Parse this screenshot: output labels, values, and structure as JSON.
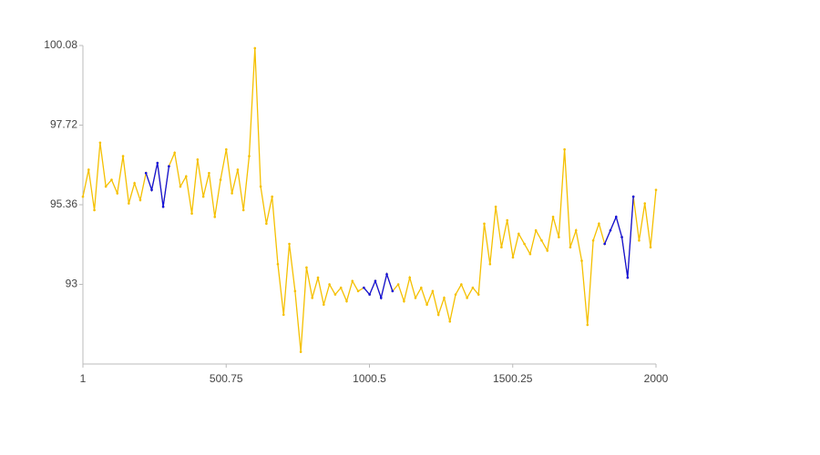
{
  "chart_data": {
    "type": "line",
    "x": [
      1,
      21,
      41,
      61,
      81,
      101,
      121,
      141,
      161,
      181,
      201,
      221,
      241,
      261,
      281,
      301,
      321,
      341,
      361,
      381,
      401,
      421,
      441,
      461,
      481,
      501,
      521,
      541,
      561,
      581,
      601,
      621,
      641,
      661,
      681,
      701,
      721,
      741,
      761,
      781,
      801,
      821,
      841,
      861,
      881,
      901,
      921,
      941,
      961,
      981,
      1001,
      1021,
      1041,
      1061,
      1081,
      1101,
      1121,
      1141,
      1161,
      1181,
      1201,
      1221,
      1241,
      1261,
      1281,
      1301,
      1321,
      1341,
      1361,
      1381,
      1401,
      1421,
      1441,
      1461,
      1481,
      1501,
      1521,
      1541,
      1561,
      1581,
      1601,
      1621,
      1641,
      1661,
      1681,
      1701,
      1721,
      1741,
      1761,
      1781,
      1801,
      1821,
      1841,
      1861,
      1881,
      1901,
      1921,
      1941,
      1961,
      1981,
      2000
    ],
    "series": [
      {
        "color": "#f5c000",
        "values": [
          95.6,
          96.4,
          95.2,
          97.2,
          95.9,
          96.1,
          95.7,
          96.8,
          95.4,
          96.0,
          95.5,
          96.3,
          95.8,
          96.6,
          95.3,
          96.5,
          96.9,
          95.9,
          96.2,
          95.1,
          96.7,
          95.6,
          96.3,
          95.0,
          96.1,
          97.0,
          95.7,
          96.4,
          95.2,
          96.8,
          100.0,
          95.9,
          94.8,
          95.6,
          93.6,
          92.1,
          94.2,
          92.8,
          91.0,
          93.5,
          92.6,
          93.2,
          92.4,
          93.0,
          92.7,
          92.9,
          92.5,
          93.1,
          92.8,
          92.9,
          92.7,
          93.1,
          92.6,
          93.3,
          92.8,
          93.0,
          92.5,
          93.2,
          92.6,
          92.9,
          92.4,
          92.8,
          92.1,
          92.6,
          91.9,
          92.7,
          93.0,
          92.6,
          92.9,
          92.7,
          94.8,
          93.6,
          95.3,
          94.1,
          94.9,
          93.8,
          94.5,
          94.2,
          93.9,
          94.6,
          94.3,
          94.0,
          95.0,
          94.4,
          97.0,
          94.1,
          94.6,
          93.7,
          91.8,
          94.3,
          94.8,
          94.2,
          94.6,
          95.0,
          94.4,
          93.2,
          95.6,
          94.3,
          95.4,
          94.1,
          95.8
        ]
      },
      {
        "color": "#1010e0",
        "values": [
          null,
          null,
          null,
          null,
          null,
          null,
          null,
          null,
          null,
          null,
          null,
          96.3,
          95.8,
          96.6,
          95.3,
          96.5,
          null,
          null,
          null,
          null,
          null,
          null,
          null,
          null,
          null,
          null,
          null,
          null,
          null,
          null,
          null,
          null,
          null,
          null,
          null,
          null,
          null,
          null,
          null,
          null,
          null,
          null,
          null,
          null,
          null,
          null,
          null,
          null,
          null,
          92.9,
          92.7,
          93.1,
          92.6,
          93.3,
          92.8,
          null,
          null,
          null,
          null,
          null,
          null,
          null,
          null,
          null,
          null,
          null,
          null,
          null,
          null,
          null,
          null,
          null,
          null,
          null,
          null,
          null,
          null,
          null,
          null,
          null,
          null,
          null,
          null,
          null,
          null,
          null,
          null,
          null,
          null,
          null,
          null,
          94.2,
          94.6,
          95.0,
          94.4,
          93.2,
          95.6,
          null,
          null,
          null,
          null
        ]
      }
    ],
    "xlim": [
      1,
      2000
    ],
    "xticks": [
      1,
      500.75,
      1000.5,
      1500.25,
      2000
    ],
    "ylim": [
      90.64,
      100.08
    ],
    "yticks": [
      93,
      95.36,
      97.72,
      100.08
    ],
    "grid": false
  }
}
